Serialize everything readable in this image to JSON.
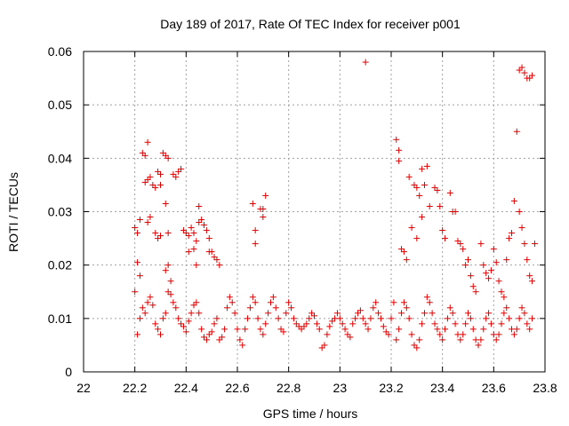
{
  "chart_data": {
    "type": "scatter",
    "title": "Day 189 of 2017, Rate Of TEC Index for receiver p001",
    "xlabel": "GPS time / hours",
    "ylabel": "ROTI / TECUs",
    "xlim": [
      22,
      23.8
    ],
    "ylim": [
      0,
      0.06
    ],
    "xticks": [
      "22",
      "22.2",
      "22.4",
      "22.6",
      "22.8",
      "23",
      "23.2",
      "23.4",
      "23.6",
      "23.8"
    ],
    "yticks": [
      "0",
      "0.01",
      "0.02",
      "0.03",
      "0.04",
      "0.05",
      "0.06"
    ],
    "grid": true,
    "marker": "+",
    "color": "#e00000",
    "series": [
      {
        "name": "ROTI",
        "points": [
          [
            22.2,
            0.027
          ],
          [
            22.21,
            0.026
          ],
          [
            22.22,
            0.0285
          ],
          [
            22.21,
            0.0205
          ],
          [
            22.22,
            0.018
          ],
          [
            22.2,
            0.015
          ],
          [
            22.23,
            0.041
          ],
          [
            22.24,
            0.0405
          ],
          [
            22.25,
            0.043
          ],
          [
            22.25,
            0.036
          ],
          [
            22.26,
            0.0365
          ],
          [
            22.24,
            0.0355
          ],
          [
            22.27,
            0.035
          ],
          [
            22.28,
            0.0345
          ],
          [
            22.26,
            0.029
          ],
          [
            22.25,
            0.028
          ],
          [
            22.28,
            0.026
          ],
          [
            22.29,
            0.025
          ],
          [
            22.3,
            0.0255
          ],
          [
            22.29,
            0.0375
          ],
          [
            22.3,
            0.037
          ],
          [
            22.31,
            0.041
          ],
          [
            22.32,
            0.0405
          ],
          [
            22.33,
            0.04
          ],
          [
            22.3,
            0.035
          ],
          [
            22.32,
            0.0315
          ],
          [
            22.33,
            0.026
          ],
          [
            22.33,
            0.02
          ],
          [
            22.34,
            0.017
          ],
          [
            22.32,
            0.019
          ],
          [
            22.35,
            0.037
          ],
          [
            22.36,
            0.0365
          ],
          [
            22.37,
            0.0375
          ],
          [
            22.38,
            0.038
          ],
          [
            22.39,
            0.0265
          ],
          [
            22.4,
            0.026
          ],
          [
            22.41,
            0.0255
          ],
          [
            22.42,
            0.027
          ],
          [
            22.43,
            0.026
          ],
          [
            22.44,
            0.0245
          ],
          [
            22.45,
            0.028
          ],
          [
            22.46,
            0.0285
          ],
          [
            22.47,
            0.0275
          ],
          [
            22.48,
            0.0265
          ],
          [
            22.49,
            0.025
          ],
          [
            22.45,
            0.031
          ],
          [
            22.41,
            0.0225
          ],
          [
            22.43,
            0.023
          ],
          [
            22.44,
            0.02
          ],
          [
            22.49,
            0.0225
          ],
          [
            22.5,
            0.0225
          ],
          [
            22.51,
            0.0215
          ],
          [
            22.52,
            0.021
          ],
          [
            22.53,
            0.02
          ],
          [
            22.66,
            0.0315
          ],
          [
            22.67,
            0.0265
          ],
          [
            22.67,
            0.024
          ],
          [
            22.69,
            0.0305
          ],
          [
            22.7,
            0.0305
          ],
          [
            22.7,
            0.029
          ],
          [
            22.71,
            0.033
          ],
          [
            22.21,
            0.007
          ],
          [
            22.22,
            0.01
          ],
          [
            22.23,
            0.012
          ],
          [
            22.24,
            0.011
          ],
          [
            22.25,
            0.013
          ],
          [
            22.26,
            0.014
          ],
          [
            22.27,
            0.0125
          ],
          [
            22.28,
            0.009
          ],
          [
            22.29,
            0.008
          ],
          [
            22.3,
            0.007
          ],
          [
            22.31,
            0.01
          ],
          [
            22.32,
            0.011
          ],
          [
            22.33,
            0.015
          ],
          [
            22.34,
            0.0145
          ],
          [
            22.35,
            0.013
          ],
          [
            22.36,
            0.012
          ],
          [
            22.37,
            0.01
          ],
          [
            22.38,
            0.009
          ],
          [
            22.39,
            0.0085
          ],
          [
            22.4,
            0.0075
          ],
          [
            22.41,
            0.0095
          ],
          [
            22.42,
            0.011
          ],
          [
            22.43,
            0.0125
          ],
          [
            22.44,
            0.013
          ],
          [
            22.45,
            0.011
          ],
          [
            22.46,
            0.008
          ],
          [
            22.47,
            0.0065
          ],
          [
            22.48,
            0.006
          ],
          [
            22.49,
            0.007
          ],
          [
            22.5,
            0.0075
          ],
          [
            22.51,
            0.009
          ],
          [
            22.52,
            0.01
          ],
          [
            22.53,
            0.006
          ],
          [
            22.54,
            0.0065
          ],
          [
            22.55,
            0.008
          ],
          [
            22.56,
            0.012
          ],
          [
            22.57,
            0.014
          ],
          [
            22.58,
            0.013
          ],
          [
            22.59,
            0.011
          ],
          [
            22.6,
            0.008
          ],
          [
            22.61,
            0.006
          ],
          [
            22.62,
            0.005
          ],
          [
            22.63,
            0.008
          ],
          [
            22.64,
            0.01
          ],
          [
            22.65,
            0.012
          ],
          [
            22.66,
            0.014
          ],
          [
            22.67,
            0.013
          ],
          [
            22.68,
            0.01
          ],
          [
            22.69,
            0.008
          ],
          [
            22.7,
            0.007
          ],
          [
            22.71,
            0.009
          ],
          [
            22.72,
            0.011
          ],
          [
            22.73,
            0.013
          ],
          [
            22.74,
            0.014
          ],
          [
            22.75,
            0.012
          ],
          [
            22.76,
            0.01
          ],
          [
            22.77,
            0.008
          ],
          [
            22.78,
            0.0075
          ],
          [
            22.79,
            0.011
          ],
          [
            22.8,
            0.013
          ],
          [
            22.81,
            0.012
          ],
          [
            22.82,
            0.01
          ],
          [
            22.83,
            0.009
          ],
          [
            22.84,
            0.0085
          ],
          [
            22.85,
            0.008
          ],
          [
            22.86,
            0.0085
          ],
          [
            22.87,
            0.009
          ],
          [
            22.88,
            0.01
          ],
          [
            22.89,
            0.011
          ],
          [
            22.9,
            0.0105
          ],
          [
            22.91,
            0.009
          ],
          [
            22.92,
            0.008
          ],
          [
            22.93,
            0.0045
          ],
          [
            22.94,
            0.005
          ],
          [
            22.95,
            0.007
          ],
          [
            22.96,
            0.0085
          ],
          [
            22.97,
            0.0095
          ],
          [
            22.98,
            0.01
          ],
          [
            22.99,
            0.011
          ],
          [
            23.0,
            0.01
          ],
          [
            23.01,
            0.009
          ],
          [
            23.02,
            0.008
          ],
          [
            23.03,
            0.007
          ],
          [
            23.04,
            0.0065
          ],
          [
            23.05,
            0.009
          ],
          [
            23.06,
            0.01
          ],
          [
            23.07,
            0.011
          ],
          [
            23.08,
            0.0115
          ],
          [
            23.09,
            0.01
          ],
          [
            23.1,
            0.058
          ],
          [
            23.1,
            0.009
          ],
          [
            23.11,
            0.008
          ],
          [
            23.12,
            0.01
          ],
          [
            23.13,
            0.012
          ],
          [
            23.14,
            0.013
          ],
          [
            23.15,
            0.011
          ],
          [
            23.16,
            0.01
          ],
          [
            23.17,
            0.0085
          ],
          [
            23.18,
            0.0075
          ],
          [
            23.19,
            0.007
          ],
          [
            23.2,
            0.01
          ],
          [
            23.21,
            0.013
          ],
          [
            23.22,
            0.0435
          ],
          [
            23.23,
            0.0415
          ],
          [
            23.23,
            0.0395
          ],
          [
            23.24,
            0.023
          ],
          [
            23.25,
            0.0225
          ],
          [
            23.26,
            0.021
          ],
          [
            23.27,
            0.0365
          ],
          [
            23.28,
            0.027
          ],
          [
            23.29,
            0.035
          ],
          [
            23.3,
            0.0345
          ],
          [
            23.31,
            0.033
          ],
          [
            23.32,
            0.038
          ],
          [
            23.33,
            0.035
          ],
          [
            23.34,
            0.0385
          ],
          [
            23.35,
            0.031
          ],
          [
            23.32,
            0.029
          ],
          [
            23.3,
            0.025
          ],
          [
            23.37,
            0.0345
          ],
          [
            23.38,
            0.034
          ],
          [
            23.39,
            0.031
          ],
          [
            23.4,
            0.0265
          ],
          [
            23.41,
            0.025
          ],
          [
            23.43,
            0.0335
          ],
          [
            23.44,
            0.03
          ],
          [
            23.45,
            0.03
          ],
          [
            23.46,
            0.0245
          ],
          [
            23.47,
            0.024
          ],
          [
            23.48,
            0.023
          ],
          [
            23.49,
            0.02
          ],
          [
            23.5,
            0.021
          ],
          [
            23.51,
            0.018
          ],
          [
            23.52,
            0.016
          ],
          [
            23.53,
            0.015
          ],
          [
            23.55,
            0.024
          ],
          [
            23.56,
            0.02
          ],
          [
            23.57,
            0.0185
          ],
          [
            23.58,
            0.0175
          ],
          [
            23.59,
            0.019
          ],
          [
            23.6,
            0.023
          ],
          [
            23.61,
            0.0205
          ],
          [
            23.62,
            0.017
          ],
          [
            23.63,
            0.015
          ],
          [
            23.64,
            0.014
          ],
          [
            23.65,
            0.021
          ],
          [
            23.66,
            0.025
          ],
          [
            23.67,
            0.026
          ],
          [
            23.68,
            0.032
          ],
          [
            23.69,
            0.045
          ],
          [
            23.7,
            0.0565
          ],
          [
            23.71,
            0.057
          ],
          [
            23.72,
            0.056
          ],
          [
            23.73,
            0.055
          ],
          [
            23.74,
            0.055
          ],
          [
            23.75,
            0.0555
          ],
          [
            23.7,
            0.03
          ],
          [
            23.71,
            0.027
          ],
          [
            23.72,
            0.024
          ],
          [
            23.73,
            0.021
          ],
          [
            23.74,
            0.018
          ],
          [
            23.75,
            0.017
          ],
          [
            23.76,
            0.024
          ],
          [
            23.22,
            0.006
          ],
          [
            23.23,
            0.008
          ],
          [
            23.24,
            0.011
          ],
          [
            23.25,
            0.013
          ],
          [
            23.26,
            0.012
          ],
          [
            23.27,
            0.01
          ],
          [
            23.28,
            0.007
          ],
          [
            23.29,
            0.005
          ],
          [
            23.3,
            0.0045
          ],
          [
            23.31,
            0.006
          ],
          [
            23.32,
            0.009
          ],
          [
            23.33,
            0.011
          ],
          [
            23.34,
            0.014
          ],
          [
            23.35,
            0.013
          ],
          [
            23.36,
            0.011
          ],
          [
            23.37,
            0.009
          ],
          [
            23.38,
            0.008
          ],
          [
            23.39,
            0.007
          ],
          [
            23.4,
            0.006
          ],
          [
            23.41,
            0.008
          ],
          [
            23.42,
            0.01
          ],
          [
            23.43,
            0.012
          ],
          [
            23.44,
            0.011
          ],
          [
            23.45,
            0.009
          ],
          [
            23.46,
            0.007
          ],
          [
            23.47,
            0.006
          ],
          [
            23.48,
            0.007
          ],
          [
            23.49,
            0.009
          ],
          [
            23.5,
            0.011
          ],
          [
            23.51,
            0.01
          ],
          [
            23.52,
            0.008
          ],
          [
            23.53,
            0.006
          ],
          [
            23.54,
            0.005
          ],
          [
            23.55,
            0.006
          ],
          [
            23.56,
            0.008
          ],
          [
            23.57,
            0.01
          ],
          [
            23.58,
            0.011
          ],
          [
            23.59,
            0.009
          ],
          [
            23.6,
            0.007
          ],
          [
            23.61,
            0.006
          ],
          [
            23.62,
            0.007
          ],
          [
            23.63,
            0.009
          ],
          [
            23.64,
            0.011
          ],
          [
            23.65,
            0.012
          ],
          [
            23.66,
            0.01
          ],
          [
            23.67,
            0.008
          ],
          [
            23.68,
            0.007
          ],
          [
            23.69,
            0.008
          ],
          [
            23.7,
            0.01
          ],
          [
            23.71,
            0.012
          ],
          [
            23.72,
            0.011
          ],
          [
            23.73,
            0.009
          ],
          [
            23.74,
            0.008
          ],
          [
            23.75,
            0.01
          ]
        ]
      }
    ]
  }
}
